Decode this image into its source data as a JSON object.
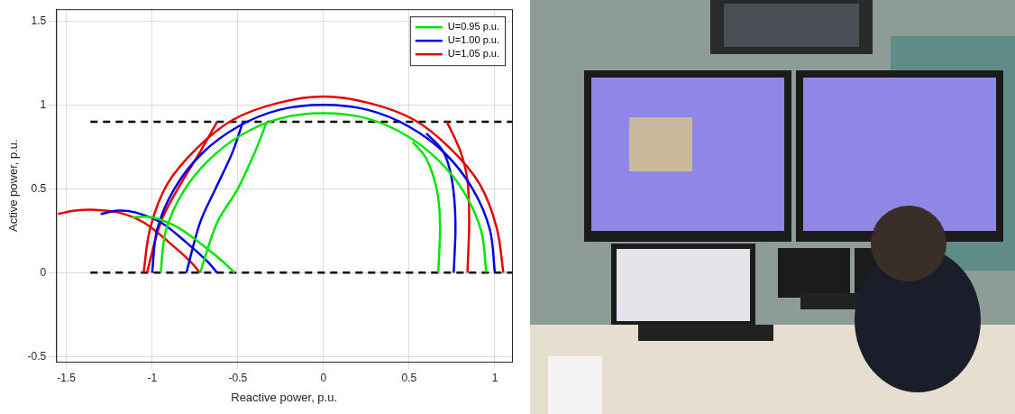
{
  "chart_data": {
    "type": "line",
    "x_label": "Reactive power, p.u.",
    "y_label": "Active power, p.u.",
    "xlim": [
      -1.56,
      1.1
    ],
    "xticks": [
      -1.5,
      -1,
      -0.5,
      0,
      0.5,
      1
    ],
    "ylim": [
      -0.53,
      1.57
    ],
    "yticks": [
      -0.5,
      0,
      0.5,
      1,
      1.5
    ],
    "grid": true,
    "legend": "upper right",
    "series": [
      {
        "name": "U=0.95 p.u.",
        "color": "#00e600",
        "line_style": "solid",
        "curves": [
          {
            "x": [
              -0.95,
              -0.92,
              -0.82,
              -0.67,
              -0.48,
              -0.25,
              0,
              0.25,
              0.48,
              0.67,
              0.82,
              0.92,
              0.95
            ],
            "y": [
              0,
              0.25,
              0.48,
              0.67,
              0.82,
              0.92,
              0.95,
              0.92,
              0.82,
              0.67,
              0.48,
              0.25,
              0
            ]
          },
          {
            "x": [
              0.67,
              0.68,
              0.66,
              0.6,
              0.52
            ],
            "y": [
              0,
              0.3,
              0.5,
              0.68,
              0.78
            ]
          },
          {
            "x": [
              -0.72,
              -0.62,
              -0.5,
              -0.4,
              -0.33
            ],
            "y": [
              0,
              0.3,
              0.5,
              0.72,
              0.9
            ]
          },
          {
            "x": [
              -1.12,
              -1.0,
              -0.85,
              -0.7,
              -0.58,
              -0.52
            ],
            "y": [
              0.33,
              0.33,
              0.27,
              0.16,
              0.06,
              0
            ]
          }
        ]
      },
      {
        "name": "U=1.00 p.u.",
        "color": "#0000e6",
        "line_style": "solid",
        "curves": [
          {
            "x": [
              -1,
              -0.97,
              -0.87,
              -0.71,
              -0.5,
              -0.26,
              0,
              0.26,
              0.5,
              0.71,
              0.87,
              0.97,
              1
            ],
            "y": [
              0,
              0.26,
              0.5,
              0.71,
              0.87,
              0.97,
              1,
              0.97,
              0.87,
              0.71,
              0.5,
              0.26,
              0
            ]
          },
          {
            "x": [
              0.76,
              0.77,
              0.75,
              0.7,
              0.6
            ],
            "y": [
              0,
              0.3,
              0.55,
              0.72,
              0.83
            ]
          },
          {
            "x": [
              -0.8,
              -0.72,
              -0.63,
              -0.53,
              -0.47
            ],
            "y": [
              0,
              0.3,
              0.5,
              0.72,
              0.9
            ]
          },
          {
            "x": [
              -1.3,
              -1.2,
              -1.1,
              -0.95,
              -0.8,
              -0.68,
              -0.62
            ],
            "y": [
              0.35,
              0.37,
              0.36,
              0.3,
              0.18,
              0.07,
              0
            ]
          }
        ]
      },
      {
        "name": "U=1.05 p.u.",
        "color": "#e60000",
        "line_style": "solid",
        "curves": [
          {
            "x": [
              -1.05,
              -1.01,
              -0.91,
              -0.74,
              -0.53,
              -0.27,
              0,
              0.27,
              0.53,
              0.74,
              0.91,
              1.01,
              1.05
            ],
            "y": [
              0,
              0.27,
              0.53,
              0.74,
              0.91,
              1.01,
              1.05,
              1.01,
              0.91,
              0.74,
              0.53,
              0.27,
              0
            ]
          },
          {
            "x": [
              0.84,
              0.85,
              0.84,
              0.8,
              0.72
            ],
            "y": [
              0,
              0.3,
              0.55,
              0.72,
              0.9
            ]
          },
          {
            "x": [
              -1.03,
              -0.95,
              -0.85,
              -0.72,
              -0.62
            ],
            "y": [
              0,
              0.3,
              0.5,
              0.72,
              0.9
            ]
          },
          {
            "x": [
              -1.55,
              -1.45,
              -1.35,
              -1.2,
              -1.05,
              -0.9,
              -0.78,
              -0.72
            ],
            "y": [
              0.35,
              0.37,
              0.375,
              0.36,
              0.3,
              0.18,
              0.07,
              0
            ]
          }
        ]
      },
      {
        "color": "#000000",
        "line_style": "dashed",
        "curves": [
          {
            "x": [
              -1.36,
              1.1
            ],
            "y": [
              0.9,
              0.9
            ]
          },
          {
            "x": [
              -1.36,
              1.1
            ],
            "y": [
              0,
              0
            ]
          }
        ]
      }
    ]
  }
}
